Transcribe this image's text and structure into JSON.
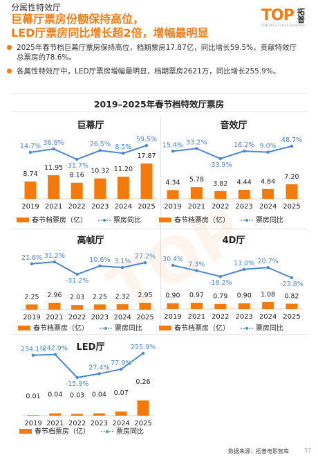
{
  "header": {
    "subtitle": "分属性特效厅",
    "title_line1": "巨幕厅票房份额保持高位，",
    "title_line2": "LED厅票房同比增长超2倍，增幅最明显"
  },
  "logo": {
    "text": "TOP",
    "cn": "拓普",
    "tagline": "CENTURY & Culture Corporation"
  },
  "bullets": [
    "2025年春节档巨幕厅票房保持高位，档期票房17.87亿，同比增长59.5%，贡献特效厅总票房的78.6%。",
    "各属性特效厅中，LED厅票房增幅最明显，档期票房2621万，同比增长255.9%。"
  ],
  "main_title": "2019–2025年春节档特效厅票房",
  "legend": {
    "bar": "春节档票房（亿）",
    "line": "票房同比"
  },
  "colors": {
    "bar": "#f47a0c",
    "line": "#4a86d8"
  },
  "chart_data": [
    {
      "type": "bar+line",
      "title": "巨幕厅",
      "categories": [
        "2019",
        "2021",
        "2022",
        "2023",
        "2024",
        "2025"
      ],
      "values": [
        8.74,
        11.95,
        8.16,
        10.32,
        11.2,
        17.87
      ],
      "value_labels": [
        "8.74",
        "11.95",
        "8.16",
        "10.32",
        "11.20",
        "17.87"
      ],
      "growth": [
        14.7,
        36.8,
        -31.7,
        26.5,
        8.5,
        59.5
      ],
      "growth_labels": [
        "14.7%",
        "36.8%",
        "-31.7%",
        "26.5%",
        "8.5%",
        "59.5%"
      ]
    },
    {
      "type": "bar+line",
      "title": "音效厅",
      "categories": [
        "2019",
        "2021",
        "2022",
        "2023",
        "2024",
        "2025"
      ],
      "values": [
        4.34,
        5.78,
        3.82,
        4.44,
        4.84,
        7.2
      ],
      "value_labels": [
        "4.34",
        "5.78",
        "3.82",
        "4.44",
        "4.84",
        "7.20"
      ],
      "growth": [
        15.4,
        33.2,
        -33.9,
        16.2,
        9.0,
        48.7
      ],
      "growth_labels": [
        "15.4%",
        "33.2%",
        "-33.9%",
        "16.2%",
        "9.0%",
        "48.7%"
      ]
    },
    {
      "type": "bar+line",
      "title": "高帧厅",
      "categories": [
        "2019",
        "2021",
        "2022",
        "2023",
        "2024",
        "2025"
      ],
      "values": [
        2.25,
        2.96,
        2.03,
        2.25,
        2.32,
        2.95
      ],
      "value_labels": [
        "2.25",
        "2.96",
        "2.03",
        "2.25",
        "2.32",
        "2.95"
      ],
      "growth": [
        21.6,
        31.2,
        -31.2,
        10.6,
        3.1,
        27.2
      ],
      "growth_labels": [
        "21.6%",
        "31.2%",
        "-31.2%",
        "10.6%",
        "3.1%",
        "27.2%"
      ]
    },
    {
      "type": "bar+line",
      "title": "4D厅",
      "categories": [
        "2019",
        "2021",
        "2022",
        "2023",
        "2024",
        "2025"
      ],
      "values": [
        0.9,
        0.97,
        0.79,
        0.9,
        1.08,
        0.82
      ],
      "value_labels": [
        "0.90",
        "0.97",
        "0.79",
        "0.90",
        "1.08",
        "0.82"
      ],
      "growth": [
        30.4,
        7.3,
        -18.2,
        13.0,
        20.7,
        -23.8
      ],
      "growth_labels": [
        "30.4%",
        "7.3%",
        "-18.2%",
        "13.0%",
        "20.7%",
        "-23.8%"
      ]
    },
    {
      "type": "bar+line",
      "title": "LED厅",
      "categories": [
        "2019",
        "2021",
        "2022",
        "2023",
        "2024",
        "2025"
      ],
      "values": [
        0.01,
        0.04,
        0.03,
        0.04,
        0.07,
        0.26
      ],
      "value_labels": [
        "0.01",
        "0.04",
        "0.03",
        "0.04",
        "0.07",
        "0.26"
      ],
      "growth": [
        234.1,
        242.9,
        -15.9,
        27.4,
        77.9,
        255.9
      ],
      "growth_labels": [
        "234.1%",
        "242.9%",
        "-15.9%",
        "27.4%",
        "77.9%",
        "255.9%"
      ]
    }
  ],
  "footer": {
    "source": "数据来源：拓普电影智库",
    "page": "37"
  }
}
